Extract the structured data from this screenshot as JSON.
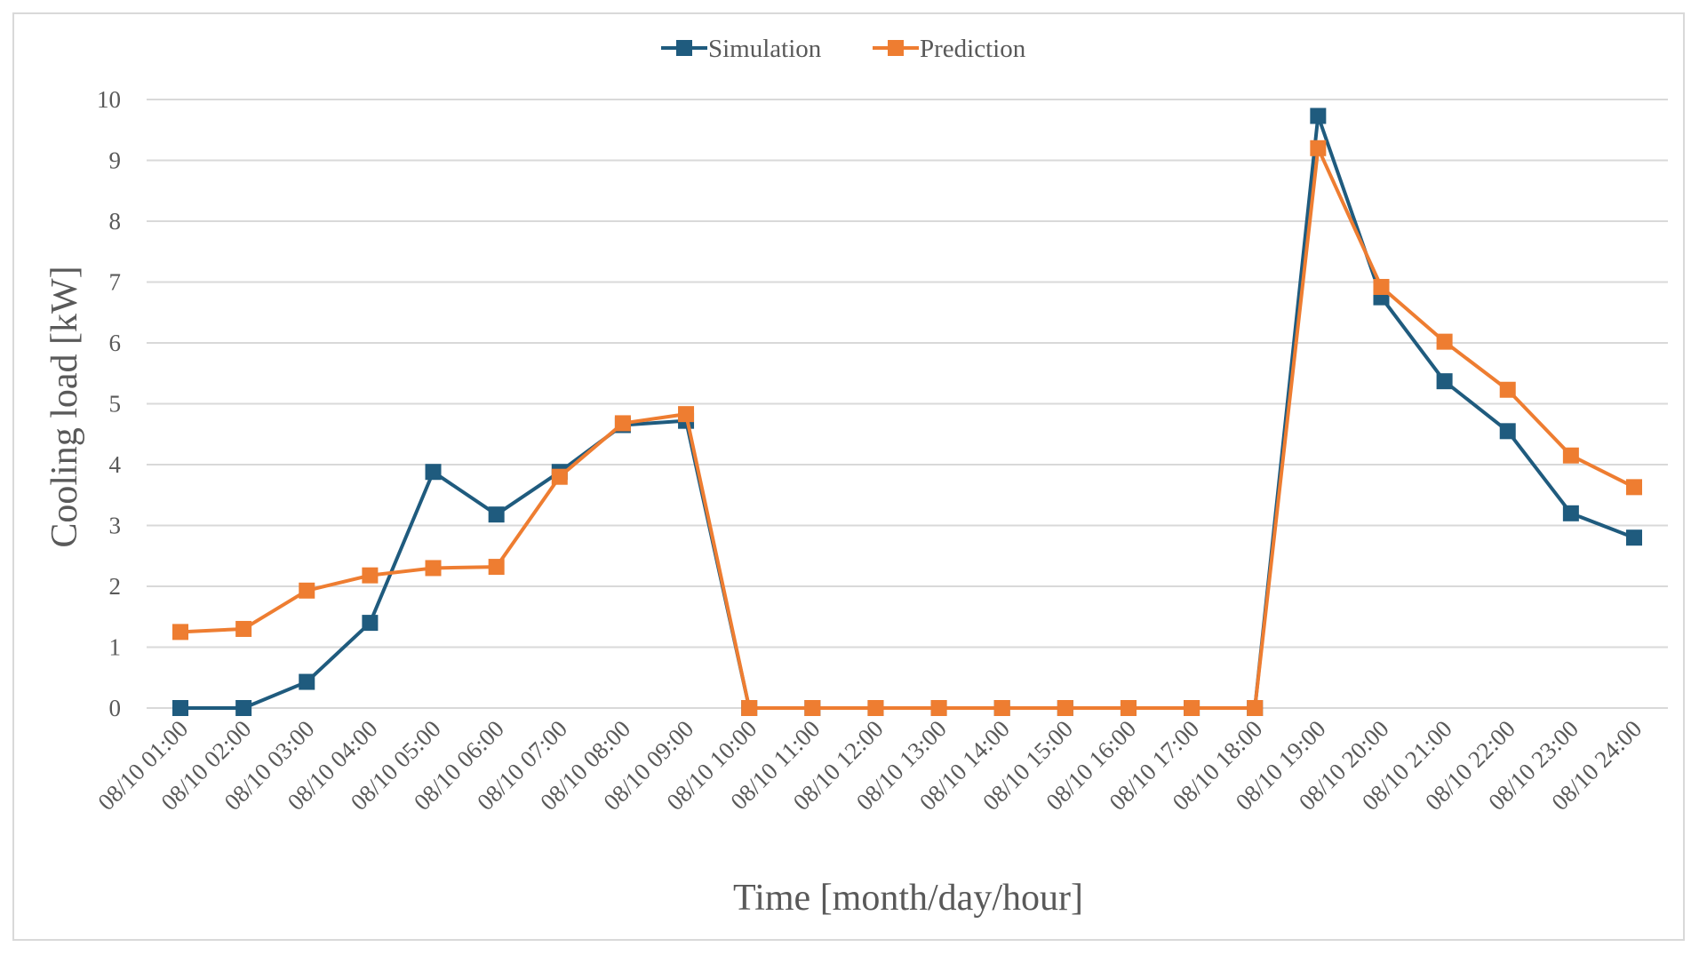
{
  "chart_data": {
    "type": "line",
    "title": "",
    "xlabel": "Time [month/day/hour]",
    "ylabel": "Cooling load [kW]",
    "ylim": [
      0,
      10
    ],
    "yticks": [
      0,
      1,
      2,
      3,
      4,
      5,
      6,
      7,
      8,
      9,
      10
    ],
    "grid": true,
    "legend_position": "top-center",
    "categories": [
      "08/10  01:00",
      "08/10  02:00",
      "08/10  03:00",
      "08/10  04:00",
      "08/10  05:00",
      "08/10  06:00",
      "08/10  07:00",
      "08/10  08:00",
      "08/10  09:00",
      "08/10  10:00",
      "08/10  11:00",
      "08/10  12:00",
      "08/10  13:00",
      "08/10  14:00",
      "08/10  15:00",
      "08/10  16:00",
      "08/10  17:00",
      "08/10  18:00",
      "08/10  19:00",
      "08/10  20:00",
      "08/10  21:00",
      "08/10  22:00",
      "08/10  23:00",
      "08/10  24:00"
    ],
    "series": [
      {
        "name": "Simulation",
        "color": "#1f5b7e",
        "values": [
          0,
          0,
          0.43,
          1.4,
          3.88,
          3.18,
          3.88,
          4.65,
          4.72,
          0,
          0,
          0,
          0,
          0,
          0,
          0,
          0,
          0,
          9.73,
          6.75,
          5.37,
          4.55,
          3.2,
          2.8
        ]
      },
      {
        "name": "Prediction",
        "color": "#ee7d31",
        "values": [
          1.25,
          1.3,
          1.93,
          2.18,
          2.3,
          2.32,
          3.8,
          4.68,
          4.83,
          0,
          0,
          0,
          0,
          0,
          0,
          0,
          0,
          0,
          9.2,
          6.92,
          6.02,
          5.23,
          4.15,
          3.63
        ]
      }
    ]
  }
}
